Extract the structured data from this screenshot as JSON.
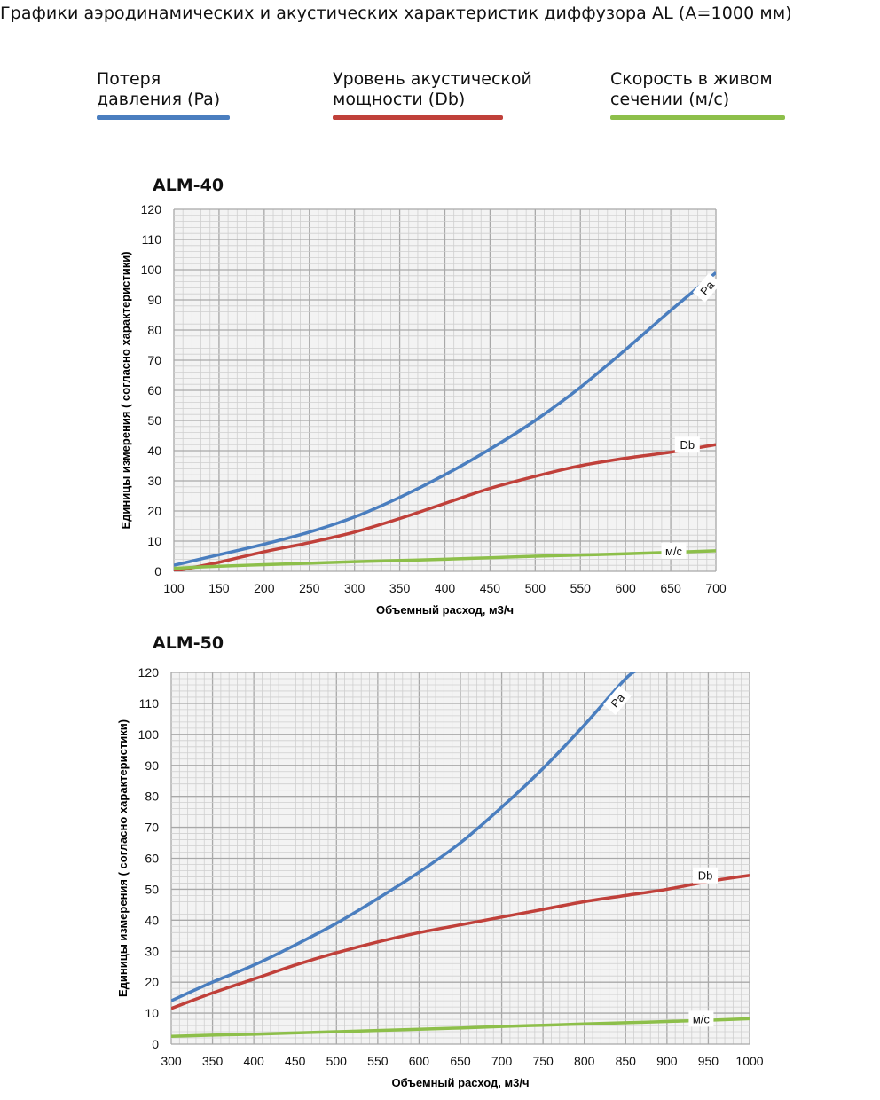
{
  "title": "Графики аэродинамических и акустических характеристик  диффузора AL (A=1000 мм)",
  "legend": [
    {
      "label_line1": "Потеря",
      "label_line2": "давления (Pa)",
      "color": "#4a7ebf"
    },
    {
      "label_line1": "Уровень акустической",
      "label_line2": "мощности (Db)",
      "color": "#c0403a"
    },
    {
      "label_line1": "Скорость в живом",
      "label_line2": "сечении (м/с)",
      "color": "#8dbf4a"
    }
  ],
  "chart_data": [
    {
      "type": "line",
      "title": "ALM-40",
      "xlabel": "Объемный расход, м3/ч",
      "ylabel": "Единицы измерения ( согласно характеристики)",
      "xlim": [
        100,
        700
      ],
      "ylim": [
        0,
        120
      ],
      "xticks": [
        100,
        150,
        200,
        250,
        300,
        350,
        400,
        450,
        500,
        550,
        600,
        650,
        700
      ],
      "yticks": [
        0,
        10,
        20,
        30,
        40,
        50,
        60,
        70,
        80,
        90,
        100,
        110,
        120
      ],
      "grid": true,
      "x": [
        100,
        150,
        200,
        250,
        300,
        350,
        400,
        450,
        500,
        550,
        600,
        650,
        700
      ],
      "series": [
        {
          "name": "Pa",
          "color": "#4a7ebf",
          "values": [
            2,
            5.5,
            9,
            13,
            18,
            24.5,
            32,
            40.5,
            50,
            61,
            73.5,
            86.5,
            99
          ]
        },
        {
          "name": "Db",
          "color": "#c0403a",
          "values": [
            0,
            3,
            6.5,
            9.5,
            13,
            17.5,
            22.5,
            27.5,
            31.5,
            35,
            37.5,
            39.5,
            42
          ]
        },
        {
          "name": "м/с",
          "color": "#8dbf4a",
          "values": [
            1,
            1.7,
            2.2,
            2.7,
            3.2,
            3.6,
            4,
            4.5,
            5,
            5.4,
            5.8,
            6.3,
            6.8
          ]
        }
      ]
    },
    {
      "type": "line",
      "title": "ALM-50",
      "xlabel": "Объемный расход, м3/ч",
      "ylabel": "Единицы измерения ( согласно характеристики)",
      "xlim": [
        300,
        1000
      ],
      "ylim": [
        0,
        120
      ],
      "xticks": [
        300,
        350,
        400,
        450,
        500,
        550,
        600,
        650,
        700,
        750,
        800,
        850,
        900,
        950,
        1000
      ],
      "yticks": [
        0,
        10,
        20,
        30,
        40,
        50,
        60,
        70,
        80,
        90,
        100,
        110,
        120
      ],
      "grid": true,
      "x": [
        300,
        350,
        400,
        450,
        500,
        550,
        600,
        650,
        700,
        750,
        800,
        850,
        900,
        950,
        1000
      ],
      "series": [
        {
          "name": "Pa",
          "color": "#4a7ebf",
          "values": [
            14,
            20,
            25.5,
            32,
            39,
            47,
            55.5,
            65,
            76.5,
            89,
            103,
            118,
            null,
            null,
            null
          ]
        },
        {
          "name": "Db",
          "color": "#c0403a",
          "values": [
            11.5,
            16.5,
            21,
            25.5,
            29.5,
            33,
            36,
            38.5,
            41,
            43.5,
            46,
            48,
            50,
            52.5,
            54.5
          ]
        },
        {
          "name": "м/с",
          "color": "#8dbf4a",
          "values": [
            2.5,
            2.9,
            3.2,
            3.6,
            4,
            4.4,
            4.8,
            5.2,
            5.7,
            6.1,
            6.5,
            6.9,
            7.3,
            7.7,
            8.2
          ]
        }
      ]
    }
  ]
}
